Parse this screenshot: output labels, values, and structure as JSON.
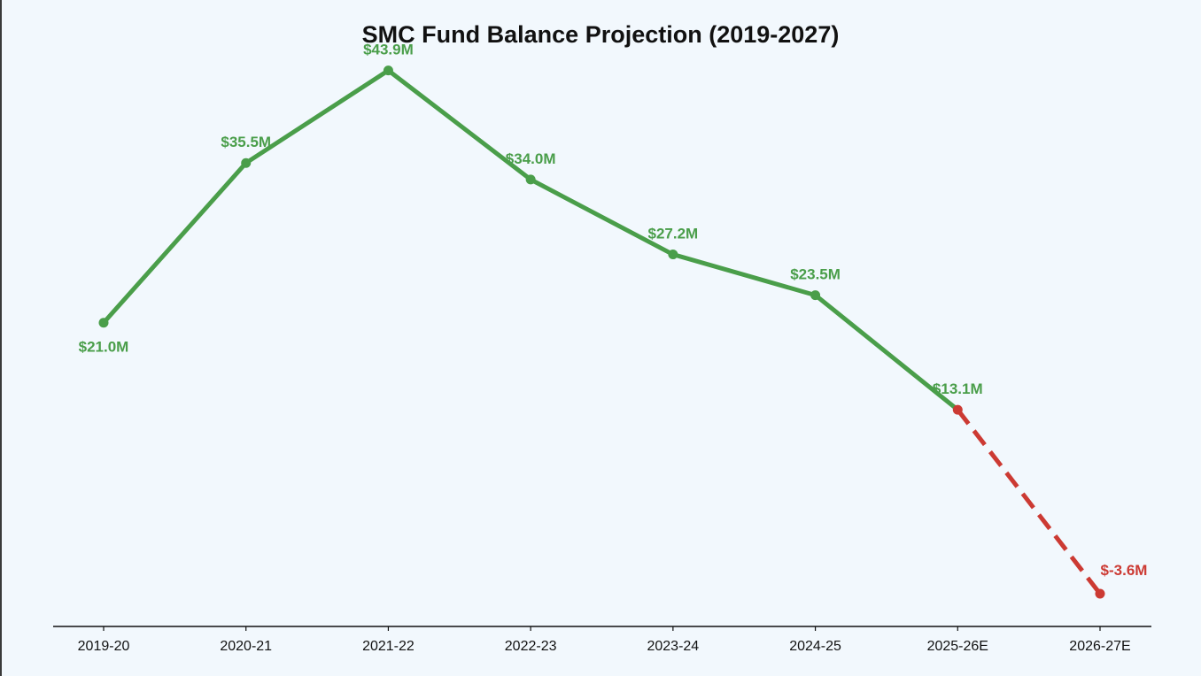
{
  "chart_data": {
    "type": "line",
    "title": "SMC Fund Balance Projection  (2019-2027)",
    "xlabel": "",
    "ylabel": "",
    "categories": [
      "2019-20",
      "2020-21",
      "2021-22",
      "2022-23",
      "2023-24",
      "2024-25",
      "2025-26E",
      "2026-27E"
    ],
    "series": [
      {
        "values": [
          21.0,
          35.5,
          43.9,
          34.0,
          27.2,
          23.5,
          13.1,
          -3.6
        ],
        "labels": [
          "$21.0M",
          "$35.5M",
          "$43.9M",
          "$34.0M",
          "$27.2M",
          "$23.5M",
          "$13.1M",
          "$-3.6M"
        ],
        "color": "#4a9e4a",
        "projection_color": "#cc3a33",
        "projection_start_index": 6
      }
    ],
    "ylim": [
      -7,
      50
    ],
    "grid": false,
    "legend": "none"
  }
}
